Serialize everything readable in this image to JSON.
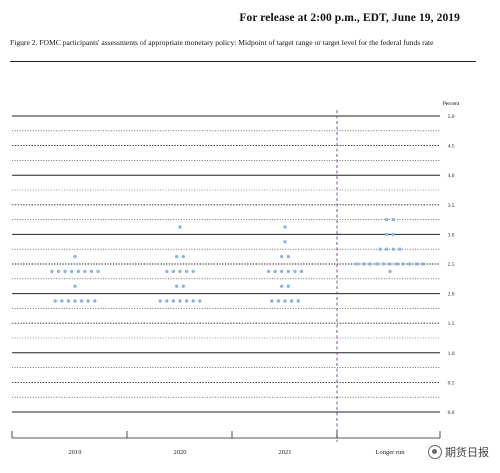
{
  "header": {
    "release": "For release at 2:00 p.m., EDT, June 19, 2019"
  },
  "figure": {
    "caption": "Figure 2. FOMC participants' assessments of appropriate monetary policy: Midpoint of target range or target level for the federal funds rate"
  },
  "watermark": {
    "text": "期货日报"
  },
  "colors": {
    "dot": "#8fb4df",
    "grid": "#222222",
    "divider": "#7a3f8f"
  },
  "chart_data": {
    "type": "scatter",
    "title": "",
    "xlabel": "",
    "ylabel": "Percent",
    "ylim": [
      0,
      5
    ],
    "yticks": [
      "5.0",
      "4.5",
      "4.0",
      "3.5",
      "3.0",
      "2.5",
      "2.0",
      "1.5",
      "1.0",
      "0.5",
      "0.0"
    ],
    "categories": [
      "2019",
      "2020",
      "2021",
      "Longer run"
    ],
    "grid": true,
    "series": [
      {
        "category": "2019",
        "points": [
          {
            "y": 2.625,
            "count": 1
          },
          {
            "y": 2.375,
            "count": 8
          },
          {
            "y": 2.125,
            "count": 1
          },
          {
            "y": 1.875,
            "count": 7
          }
        ]
      },
      {
        "category": "2020",
        "points": [
          {
            "y": 3.125,
            "count": 1
          },
          {
            "y": 2.625,
            "count": 2
          },
          {
            "y": 2.375,
            "count": 5
          },
          {
            "y": 2.125,
            "count": 2
          },
          {
            "y": 1.875,
            "count": 7
          }
        ]
      },
      {
        "category": "2021",
        "points": [
          {
            "y": 3.125,
            "count": 1
          },
          {
            "y": 2.875,
            "count": 1
          },
          {
            "y": 2.625,
            "count": 2
          },
          {
            "y": 2.375,
            "count": 6
          },
          {
            "y": 2.125,
            "count": 2
          },
          {
            "y": 1.875,
            "count": 5
          }
        ]
      },
      {
        "category": "Longer run",
        "points": [
          {
            "y": 3.25,
            "count": 2
          },
          {
            "y": 3.0,
            "count": 2
          },
          {
            "y": 2.75,
            "count": 4
          },
          {
            "y": 2.5,
            "count": 11
          },
          {
            "y": 2.375,
            "count": 1
          }
        ]
      }
    ]
  }
}
